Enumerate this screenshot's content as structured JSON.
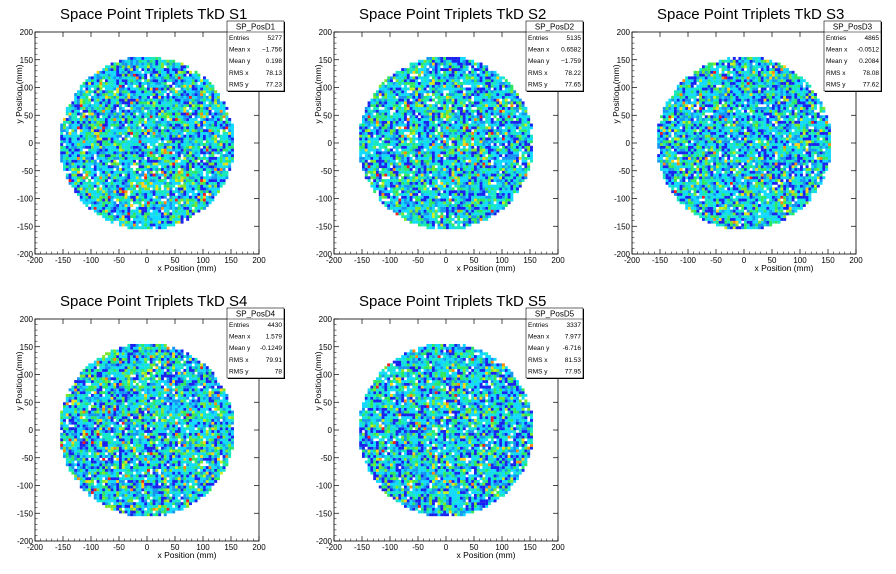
{
  "chart_data": [
    {
      "type": "heatmap",
      "title": "Space Point Triplets TkD S1",
      "xlabel": "x Position (mm)",
      "ylabel": "y Position (mm)",
      "xlim": [
        -200,
        200
      ],
      "ylim": [
        -200,
        200
      ],
      "xticks": [
        -200,
        -150,
        -100,
        -50,
        0,
        50,
        100,
        150,
        200
      ],
      "yticks": [
        -200,
        -150,
        -100,
        -50,
        0,
        50,
        100,
        150,
        200
      ],
      "disk_radius": 160,
      "seed": 11,
      "legend_position": "top-right",
      "stats": {
        "name": "SP_PosD1",
        "rows": [
          {
            "label": "Entries",
            "value": "5277"
          },
          {
            "label": "Mean x",
            "value": "−1.756"
          },
          {
            "label": "Mean y",
            "value": "0.198"
          },
          {
            "label": "RMS x",
            "value": "78.13"
          },
          {
            "label": "RMS y",
            "value": "77.23"
          }
        ]
      }
    },
    {
      "type": "heatmap",
      "title": "Space Point Triplets TkD S2",
      "xlabel": "x Position (mm)",
      "ylabel": "y Position (mm)",
      "xlim": [
        -200,
        200
      ],
      "ylim": [
        -200,
        200
      ],
      "xticks": [
        -200,
        -150,
        -100,
        -50,
        0,
        50,
        100,
        150,
        200
      ],
      "yticks": [
        -200,
        -150,
        -100,
        -50,
        0,
        50,
        100,
        150,
        200
      ],
      "disk_radius": 160,
      "seed": 23,
      "legend_position": "top-right",
      "stats": {
        "name": "SP_PosD2",
        "rows": [
          {
            "label": "Entries",
            "value": "5135"
          },
          {
            "label": "Mean x",
            "value": "0.6582"
          },
          {
            "label": "Mean y",
            "value": "−1.759"
          },
          {
            "label": "RMS x",
            "value": "78.22"
          },
          {
            "label": "RMS y",
            "value": "77.65"
          }
        ]
      }
    },
    {
      "type": "heatmap",
      "title": "Space Point Triplets TkD S3",
      "xlabel": "x Position (mm)",
      "ylabel": "y Position (mm)",
      "xlim": [
        -200,
        200
      ],
      "ylim": [
        -200,
        200
      ],
      "xticks": [
        -200,
        -150,
        -100,
        -50,
        0,
        50,
        100,
        150,
        200
      ],
      "yticks": [
        -200,
        -150,
        -100,
        -50,
        0,
        50,
        100,
        150,
        200
      ],
      "disk_radius": 160,
      "seed": 37,
      "legend_position": "top-right",
      "stats": {
        "name": "SP_PosD3",
        "rows": [
          {
            "label": "Entries",
            "value": "4865"
          },
          {
            "label": "Mean x",
            "value": "-0.0512"
          },
          {
            "label": "Mean y",
            "value": "0.2084"
          },
          {
            "label": "RMS x",
            "value": "78.08"
          },
          {
            "label": "RMS y",
            "value": "77.62"
          }
        ]
      }
    },
    {
      "type": "heatmap",
      "title": "Space Point Triplets TkD S4",
      "xlabel": "x Position (mm)",
      "ylabel": "y Position (mm)",
      "xlim": [
        -200,
        200
      ],
      "ylim": [
        -200,
        200
      ],
      "xticks": [
        -200,
        -150,
        -100,
        -50,
        0,
        50,
        100,
        150,
        200
      ],
      "yticks": [
        -200,
        -150,
        -100,
        -50,
        0,
        50,
        100,
        150,
        200
      ],
      "disk_radius": 160,
      "seed": 41,
      "legend_position": "top-right",
      "stats": {
        "name": "SP_PosD4",
        "rows": [
          {
            "label": "Entries",
            "value": "4430"
          },
          {
            "label": "Mean x",
            "value": "1.579"
          },
          {
            "label": "Mean y",
            "value": "-0.1249"
          },
          {
            "label": "RMS x",
            "value": "79.91"
          },
          {
            "label": "RMS y",
            "value": "78"
          }
        ]
      }
    },
    {
      "type": "heatmap",
      "title": "Space Point Triplets TkD S5",
      "xlabel": "x Position (mm)",
      "ylabel": "y Position (mm)",
      "xlim": [
        -200,
        200
      ],
      "ylim": [
        -200,
        200
      ],
      "xticks": [
        -200,
        -150,
        -100,
        -50,
        0,
        50,
        100,
        150,
        200
      ],
      "yticks": [
        -200,
        -150,
        -100,
        -50,
        0,
        50,
        100,
        150,
        200
      ],
      "disk_radius": 160,
      "seed": 53,
      "legend_position": "top-right",
      "stats": {
        "name": "SP_PosD5",
        "rows": [
          {
            "label": "Entries",
            "value": "3337"
          },
          {
            "label": "Mean x",
            "value": "7.977"
          },
          {
            "label": "Mean y",
            "value": "-6.716"
          },
          {
            "label": "RMS x",
            "value": "81.53"
          },
          {
            "label": "RMS y",
            "value": "77.95"
          }
        ]
      }
    }
  ]
}
